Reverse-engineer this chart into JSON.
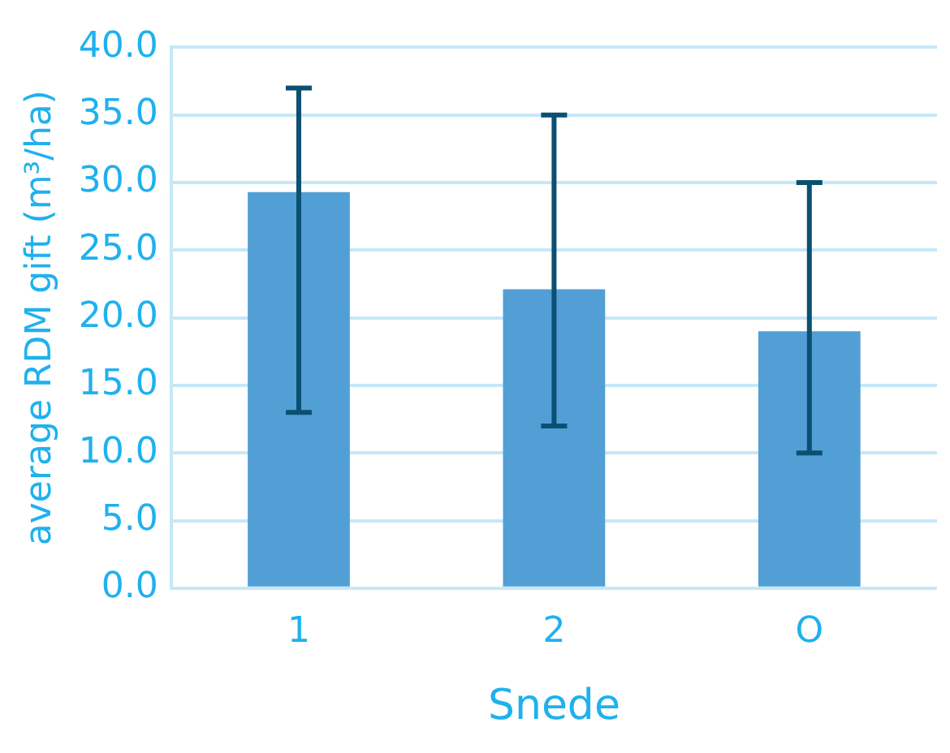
{
  "chart_data": {
    "type": "bar",
    "xlabel": "Snede",
    "ylabel": "average RDM gift (m³/ha)",
    "categories": [
      "1",
      "2",
      "O"
    ],
    "values": [
      29.3,
      22.1,
      19.0
    ],
    "errors": [
      [
        13.0,
        37.0
      ],
      [
        12.0,
        35.0
      ],
      [
        10.0,
        30.0
      ]
    ],
    "color": "#529fd6",
    "ylim": [
      0,
      40
    ],
    "yticks": [
      {
        "value": 0,
        "label": "0.0"
      },
      {
        "value": 5,
        "label": "5.0"
      },
      {
        "value": 10,
        "label": "10.0"
      },
      {
        "value": 15,
        "label": "15.0"
      },
      {
        "value": 20,
        "label": "20.0"
      },
      {
        "value": 25,
        "label": "25.0"
      },
      {
        "value": 30,
        "label": "30.0"
      },
      {
        "value": 35,
        "label": "35.0"
      },
      {
        "value": 40,
        "label": "40.0"
      }
    ],
    "grid": "y",
    "legend": false
  }
}
